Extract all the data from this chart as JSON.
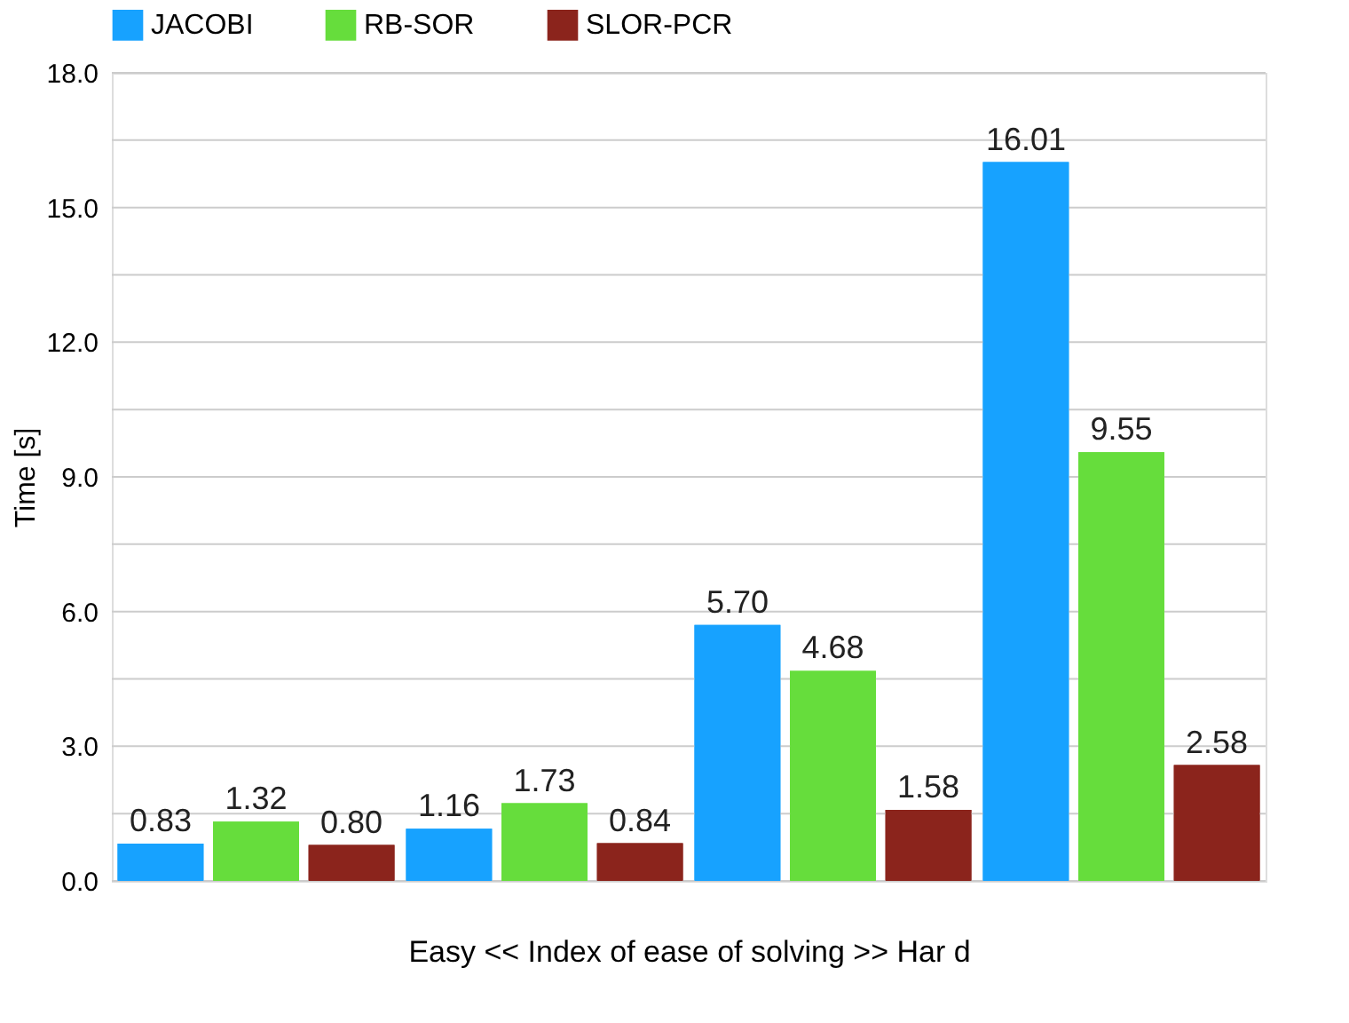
{
  "chart_data": {
    "type": "bar",
    "xlabel": "Easy  <<      Index of ease of solving      >>   Har d",
    "ylabel": "Time [s]",
    "categories": [
      null,
      null,
      null,
      null
    ],
    "series": [
      {
        "name": "JACOBI",
        "color": "#17a2ff",
        "values": [
          0.83,
          1.16,
          5.7,
          16.01
        ],
        "value_labels": [
          "0.83",
          "1.16",
          "5.70",
          "16.01"
        ]
      },
      {
        "name": "RB-SOR",
        "color": "#66dd3c",
        "values": [
          1.32,
          1.73,
          4.68,
          9.55
        ],
        "value_labels": [
          "1.32",
          "1.73",
          "4.68",
          "9.55"
        ]
      },
      {
        "name": "SLOR-PCR",
        "color": "#8b241c",
        "values": [
          0.8,
          0.84,
          1.58,
          2.58
        ],
        "value_labels": [
          "0.80",
          "0.84",
          "1.58",
          "2.58"
        ]
      }
    ],
    "ylim": [
      0,
      18
    ],
    "yticks": [
      {
        "value": 0,
        "label": "0.0"
      },
      {
        "value": 1.5,
        "label": null
      },
      {
        "value": 3,
        "label": "3.0"
      },
      {
        "value": 4.5,
        "label": null
      },
      {
        "value": 6,
        "label": "6.0"
      },
      {
        "value": 7.5,
        "label": null
      },
      {
        "value": 9,
        "label": "9.0"
      },
      {
        "value": 10.5,
        "label": null
      },
      {
        "value": 12,
        "label": "12.0"
      },
      {
        "value": 13.5,
        "label": null
      },
      {
        "value": 15,
        "label": "15.0"
      },
      {
        "value": 16.5,
        "label": null
      },
      {
        "value": 18,
        "label": "18.0"
      }
    ],
    "grid": "y",
    "legend": "top"
  }
}
